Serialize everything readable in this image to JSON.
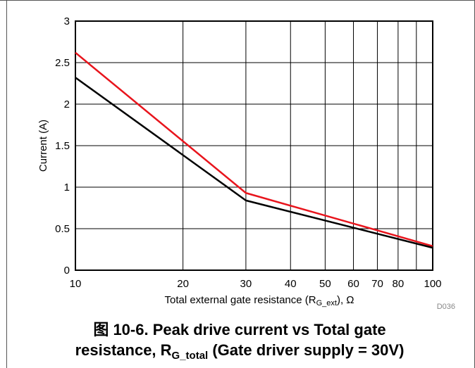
{
  "chart_data": {
    "type": "line",
    "xscale": "log",
    "xlim": [
      10,
      100
    ],
    "ylim": [
      0,
      3
    ],
    "xticks": [
      "10",
      "20",
      "30",
      "40",
      "50",
      "60",
      "70",
      "80",
      "100"
    ],
    "yticks": [
      "0",
      "0.5",
      "1",
      "1.5",
      "2",
      "2.5",
      "3"
    ],
    "ylabel": "Current (A)",
    "xlabel_main": "Total external gate resistance (R",
    "xlabel_sub": "G_ext",
    "xlabel_end": "), Ω",
    "code": "D036",
    "grid": true,
    "series": [
      {
        "color": "#e8141c",
        "x": [
          10,
          30,
          100
        ],
        "y": [
          2.62,
          0.93,
          0.29
        ]
      },
      {
        "color": "#000000",
        "x": [
          10,
          30,
          100
        ],
        "y": [
          2.32,
          0.84,
          0.27
        ]
      }
    ]
  },
  "caption": {
    "line1": "图 10-6. Peak drive current vs Total gate",
    "line2_pre": "resistance, R",
    "line2_sub": "G_total",
    "line2_post": " (Gate driver supply = 30V)"
  }
}
